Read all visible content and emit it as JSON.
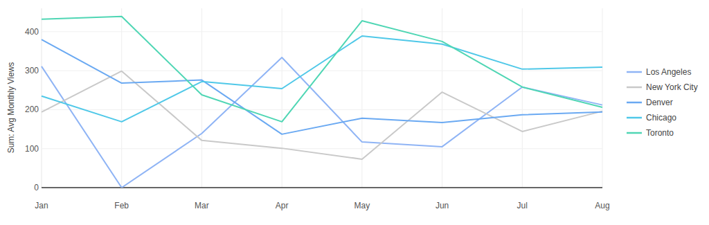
{
  "chart_data": {
    "type": "line",
    "y_label": "Sum: Avg Monthly Views",
    "categories": [
      "Jan",
      "Feb",
      "Mar",
      "Apr",
      "May",
      "Jun",
      "Jul",
      "Aug"
    ],
    "series": [
      {
        "name": "Los Angeles",
        "color": "#8fb4f5",
        "values": [
          311,
          0,
          139,
          334,
          117,
          105,
          258,
          212
        ]
      },
      {
        "name": "New York City",
        "color": "#c9c9c9",
        "values": [
          194,
          299,
          121,
          101,
          73,
          245,
          144,
          196
        ]
      },
      {
        "name": "Denver",
        "color": "#6aa9f2",
        "values": [
          380,
          268,
          276,
          137,
          178,
          167,
          187,
          194
        ]
      },
      {
        "name": "Chicago",
        "color": "#4fc8e8",
        "values": [
          235,
          169,
          272,
          254,
          389,
          368,
          304,
          309
        ]
      },
      {
        "name": "Toronto",
        "color": "#4fd6b4",
        "values": [
          432,
          439,
          238,
          169,
          428,
          375,
          258,
          206
        ]
      }
    ],
    "ylim": [
      0,
      460
    ],
    "yticks": [
      0,
      100,
      200,
      300,
      400
    ],
    "grid": true,
    "legend": "right"
  }
}
